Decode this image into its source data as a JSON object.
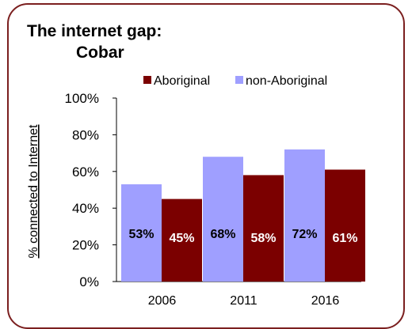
{
  "title": {
    "line1": "The internet gap:",
    "line2": "Cobar"
  },
  "colors": {
    "aboriginal": "#7b0000",
    "non_aboriginal": "#9f9fff",
    "frame": "#7b1f1f",
    "axis": "#000000"
  },
  "chart_data": {
    "type": "bar",
    "title": "The internet gap: Cobar",
    "categories": [
      "2006",
      "2011",
      "2016"
    ],
    "series": [
      {
        "name": "non-Aboriginal",
        "values": [
          53,
          68,
          72
        ],
        "labels": [
          "53%",
          "68%",
          "72%"
        ]
      },
      {
        "name": "Aboriginal",
        "values": [
          45,
          58,
          61
        ],
        "labels": [
          "45%",
          "58%",
          "61%"
        ]
      }
    ],
    "legend_order": [
      "Aboriginal",
      "non-Aboriginal"
    ],
    "legend_position": "top",
    "ylabel": "% connected to Internet",
    "xlabel": "",
    "ylim": [
      0,
      100
    ],
    "yticks": [
      "0%",
      "20%",
      "40%",
      "60%",
      "80%",
      "100%"
    ],
    "grid": false
  }
}
